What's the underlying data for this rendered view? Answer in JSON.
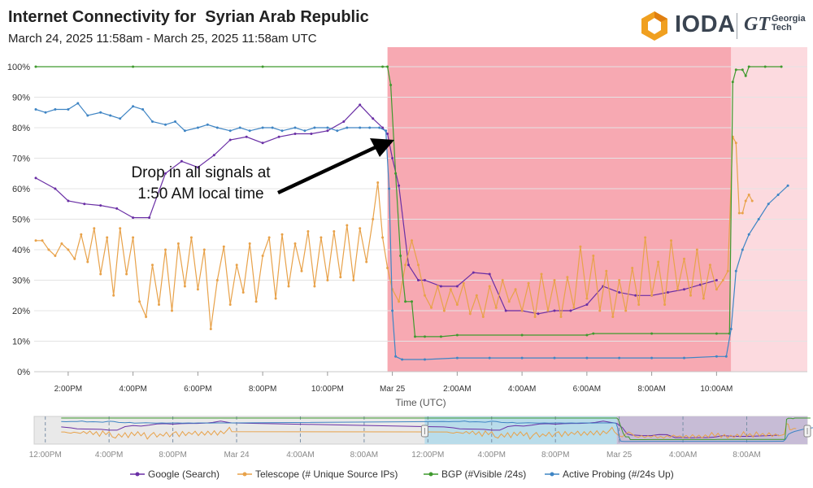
{
  "header": {
    "title": "Internet Connectivity for  Syrian Arab Republic",
    "subtitle": "March 24, 2025 11:58am - March 25, 2025 11:58am UTC",
    "logo_main": "IODA",
    "logo_gt": "GT",
    "logo_gt_line1": "Georgia",
    "logo_gt_line2": "Tech"
  },
  "annotation": {
    "line1": "Drop in all signals at",
    "line2": "1:50 AM local time"
  },
  "colors": {
    "google": "#6a2fa5",
    "telescope": "#e8a24a",
    "bgp": "#3f9a2e",
    "probing": "#3f85c4",
    "outage_dark": "#f7a9b2",
    "outage_light": "#fcdadf",
    "grid": "#e4e4e4"
  },
  "chart_data": {
    "type": "line",
    "title": "Internet Connectivity for  Syrian Arab Republic",
    "xlabel": "Time (UTC)",
    "ylabel": "",
    "ylim": [
      0,
      100
    ],
    "xlim_hours": [
      12.95,
      36.8
    ],
    "y_ticks": [
      "0%",
      "10%",
      "20%",
      "30%",
      "40%",
      "50%",
      "60%",
      "70%",
      "80%",
      "90%",
      "100%"
    ],
    "x_ticks": [
      {
        "h": 14,
        "label": "2:00PM"
      },
      {
        "h": 16,
        "label": "4:00PM"
      },
      {
        "h": 18,
        "label": "6:00PM"
      },
      {
        "h": 20,
        "label": "8:00PM"
      },
      {
        "h": 22,
        "label": "10:00PM"
      },
      {
        "h": 24,
        "label": "Mar 25"
      },
      {
        "h": 26,
        "label": "2:00AM"
      },
      {
        "h": 28,
        "label": "4:00AM"
      },
      {
        "h": 30,
        "label": "6:00AM"
      },
      {
        "h": 32,
        "label": "8:00AM"
      },
      {
        "h": 34,
        "label": "10:00AM"
      }
    ],
    "outages": [
      {
        "start_h": 23.85,
        "end_h": 34.45,
        "shade": "dark"
      },
      {
        "start_h": 34.45,
        "end_h": 36.8,
        "shade": "light"
      }
    ],
    "series": [
      {
        "name": "Google (Search)",
        "key": "google",
        "points": [
          [
            13.0,
            63.5
          ],
          [
            13.6,
            60
          ],
          [
            14.0,
            56
          ],
          [
            14.5,
            55
          ],
          [
            15.0,
            54.5
          ],
          [
            15.5,
            53.5
          ],
          [
            16.0,
            50.5
          ],
          [
            16.5,
            50.5
          ],
          [
            17.0,
            65
          ],
          [
            17.5,
            69
          ],
          [
            18.0,
            67
          ],
          [
            18.5,
            71
          ],
          [
            19.0,
            76
          ],
          [
            19.5,
            77
          ],
          [
            20.0,
            75
          ],
          [
            20.5,
            77
          ],
          [
            21.0,
            78
          ],
          [
            21.5,
            78
          ],
          [
            22.0,
            79
          ],
          [
            22.5,
            82
          ],
          [
            23.0,
            87.5
          ],
          [
            23.4,
            83
          ],
          [
            23.7,
            80
          ],
          [
            23.85,
            78
          ],
          [
            24.0,
            70
          ],
          [
            24.2,
            61
          ],
          [
            24.5,
            35
          ],
          [
            24.8,
            30
          ],
          [
            25.0,
            30
          ],
          [
            25.5,
            28
          ],
          [
            26.0,
            28
          ],
          [
            26.5,
            32.5
          ],
          [
            27.0,
            32
          ],
          [
            27.5,
            20
          ],
          [
            28.0,
            20
          ],
          [
            28.5,
            19
          ],
          [
            29.0,
            20
          ],
          [
            29.5,
            20
          ],
          [
            30.0,
            22
          ],
          [
            30.5,
            28
          ],
          [
            31.0,
            26
          ],
          [
            31.5,
            25
          ],
          [
            32.0,
            25
          ],
          [
            32.5,
            26
          ],
          [
            33.0,
            27
          ],
          [
            33.5,
            28.5
          ],
          [
            34.0,
            30
          ]
        ]
      },
      {
        "name": "Telescope (# Unique Source IPs)",
        "key": "telescope",
        "points": [
          [
            13.0,
            43
          ],
          [
            13.2,
            43
          ],
          [
            13.4,
            40
          ],
          [
            13.6,
            38
          ],
          [
            13.8,
            42
          ],
          [
            14.0,
            40
          ],
          [
            14.2,
            37
          ],
          [
            14.4,
            45
          ],
          [
            14.6,
            36
          ],
          [
            14.8,
            47
          ],
          [
            15.0,
            32
          ],
          [
            15.2,
            44
          ],
          [
            15.4,
            25
          ],
          [
            15.6,
            47
          ],
          [
            15.8,
            32
          ],
          [
            16.0,
            44
          ],
          [
            16.2,
            23
          ],
          [
            16.4,
            18
          ],
          [
            16.6,
            35
          ],
          [
            16.8,
            22
          ],
          [
            17.0,
            40
          ],
          [
            17.2,
            20
          ],
          [
            17.4,
            42
          ],
          [
            17.6,
            28
          ],
          [
            17.8,
            44
          ],
          [
            18.0,
            27
          ],
          [
            18.2,
            40
          ],
          [
            18.4,
            14
          ],
          [
            18.6,
            30
          ],
          [
            18.8,
            41
          ],
          [
            19.0,
            22
          ],
          [
            19.2,
            35
          ],
          [
            19.4,
            26
          ],
          [
            19.6,
            42
          ],
          [
            19.8,
            23
          ],
          [
            20.0,
            38
          ],
          [
            20.2,
            44
          ],
          [
            20.4,
            24
          ],
          [
            20.6,
            45
          ],
          [
            20.8,
            28
          ],
          [
            21.0,
            42
          ],
          [
            21.2,
            33
          ],
          [
            21.4,
            46
          ],
          [
            21.6,
            28
          ],
          [
            21.8,
            44
          ],
          [
            22.0,
            30
          ],
          [
            22.2,
            46
          ],
          [
            22.4,
            31
          ],
          [
            22.6,
            48
          ],
          [
            22.8,
            30
          ],
          [
            23.0,
            47
          ],
          [
            23.2,
            36
          ],
          [
            23.4,
            50
          ],
          [
            23.55,
            62
          ],
          [
            23.7,
            44
          ],
          [
            23.85,
            34
          ],
          [
            24.0,
            27
          ],
          [
            24.2,
            23
          ],
          [
            24.4,
            35
          ],
          [
            24.6,
            43
          ],
          [
            24.8,
            35
          ],
          [
            25.0,
            25
          ],
          [
            25.2,
            21
          ],
          [
            25.4,
            28
          ],
          [
            25.6,
            20
          ],
          [
            25.8,
            27
          ],
          [
            26.0,
            22
          ],
          [
            26.2,
            29
          ],
          [
            26.4,
            19
          ],
          [
            26.6,
            25
          ],
          [
            26.8,
            18
          ],
          [
            27.0,
            28
          ],
          [
            27.2,
            21
          ],
          [
            27.4,
            30
          ],
          [
            27.6,
            23
          ],
          [
            27.8,
            27
          ],
          [
            28.0,
            20
          ],
          [
            28.2,
            29
          ],
          [
            28.4,
            18
          ],
          [
            28.6,
            32
          ],
          [
            28.8,
            20
          ],
          [
            29.0,
            30
          ],
          [
            29.2,
            18
          ],
          [
            29.4,
            31
          ],
          [
            29.6,
            21
          ],
          [
            29.8,
            41
          ],
          [
            30.0,
            24
          ],
          [
            30.2,
            38
          ],
          [
            30.4,
            20
          ],
          [
            30.6,
            33
          ],
          [
            30.8,
            18
          ],
          [
            31.0,
            30
          ],
          [
            31.2,
            20
          ],
          [
            31.4,
            34
          ],
          [
            31.6,
            22
          ],
          [
            31.8,
            44
          ],
          [
            32.0,
            25
          ],
          [
            32.2,
            36
          ],
          [
            32.4,
            22
          ],
          [
            32.6,
            43
          ],
          [
            32.8,
            27
          ],
          [
            33.0,
            37
          ],
          [
            33.2,
            25
          ],
          [
            33.4,
            40
          ],
          [
            33.6,
            24
          ],
          [
            33.8,
            35
          ],
          [
            34.0,
            27
          ],
          [
            34.2,
            30
          ],
          [
            34.35,
            33
          ],
          [
            34.5,
            77
          ],
          [
            34.6,
            75
          ],
          [
            34.7,
            52
          ],
          [
            34.8,
            52
          ],
          [
            34.9,
            56
          ],
          [
            35.0,
            58
          ],
          [
            35.1,
            56
          ]
        ]
      },
      {
        "name": "BGP (#Visible /24s)",
        "key": "bgp",
        "points": [
          [
            13.0,
            100
          ],
          [
            16.0,
            100
          ],
          [
            20.0,
            100
          ],
          [
            23.7,
            100
          ],
          [
            23.85,
            100
          ],
          [
            23.95,
            94
          ],
          [
            24.1,
            65
          ],
          [
            24.25,
            38
          ],
          [
            24.4,
            23
          ],
          [
            24.6,
            23
          ],
          [
            24.7,
            11.5
          ],
          [
            25.0,
            11.5
          ],
          [
            25.5,
            11.5
          ],
          [
            26.0,
            12
          ],
          [
            28.0,
            12
          ],
          [
            30.0,
            12
          ],
          [
            30.2,
            12.5
          ],
          [
            32.0,
            12.5
          ],
          [
            34.0,
            12.5
          ],
          [
            34.4,
            12.5
          ],
          [
            34.5,
            95
          ],
          [
            34.6,
            99
          ],
          [
            34.8,
            99
          ],
          [
            34.9,
            97
          ],
          [
            35.0,
            100
          ],
          [
            35.5,
            100
          ],
          [
            36.0,
            100
          ]
        ]
      },
      {
        "name": "Active Probing (#/24s Up)",
        "key": "probing",
        "points": [
          [
            13.0,
            86
          ],
          [
            13.3,
            85
          ],
          [
            13.6,
            86
          ],
          [
            14.0,
            86
          ],
          [
            14.3,
            88
          ],
          [
            14.6,
            84
          ],
          [
            15.0,
            85
          ],
          [
            15.3,
            84
          ],
          [
            15.6,
            83
          ],
          [
            16.0,
            87
          ],
          [
            16.3,
            86
          ],
          [
            16.6,
            82
          ],
          [
            17.0,
            81
          ],
          [
            17.3,
            82
          ],
          [
            17.6,
            79
          ],
          [
            18.0,
            80
          ],
          [
            18.3,
            81
          ],
          [
            18.6,
            80
          ],
          [
            19.0,
            79
          ],
          [
            19.3,
            80
          ],
          [
            19.6,
            79
          ],
          [
            20.0,
            80
          ],
          [
            20.3,
            80
          ],
          [
            20.6,
            79
          ],
          [
            21.0,
            80
          ],
          [
            21.3,
            79
          ],
          [
            21.6,
            80
          ],
          [
            22.0,
            80
          ],
          [
            22.3,
            79
          ],
          [
            22.6,
            80
          ],
          [
            23.0,
            80
          ],
          [
            23.3,
            80
          ],
          [
            23.6,
            80
          ],
          [
            23.8,
            79
          ],
          [
            23.9,
            60
          ],
          [
            24.0,
            20
          ],
          [
            24.1,
            5
          ],
          [
            24.3,
            4
          ],
          [
            25.0,
            4
          ],
          [
            26.0,
            4.5
          ],
          [
            27.0,
            4.5
          ],
          [
            28.0,
            4.5
          ],
          [
            29.0,
            4.5
          ],
          [
            30.0,
            4.5
          ],
          [
            31.0,
            4.5
          ],
          [
            32.0,
            4.5
          ],
          [
            33.0,
            4.5
          ],
          [
            34.0,
            5
          ],
          [
            34.3,
            5
          ],
          [
            34.45,
            14
          ],
          [
            34.6,
            33
          ],
          [
            34.8,
            40
          ],
          [
            35.0,
            45
          ],
          [
            35.3,
            50
          ],
          [
            35.6,
            55
          ],
          [
            35.9,
            58
          ],
          [
            36.2,
            61
          ]
        ]
      }
    ],
    "navigator": {
      "xlim_hours": [
        11.5,
        36.8
      ],
      "x_ticks": [
        {
          "h": 12,
          "label": "12:00PM"
        },
        {
          "h": 16,
          "label": "4:00PM"
        },
        {
          "h": 20,
          "label": "8:00PM"
        },
        {
          "h": 24,
          "label": "Mar 24"
        },
        {
          "h": 28,
          "label": "4:00AM"
        },
        {
          "h": 32,
          "label": "8:00AM"
        },
        {
          "h": 36,
          "label": "12:00PM"
        },
        {
          "h": 40,
          "label": "4:00PM"
        },
        {
          "h": 44,
          "label": "8:00PM"
        },
        {
          "h": 48,
          "label": "Mar 25"
        },
        {
          "h": 52,
          "label": "4:00AM"
        },
        {
          "h": 56,
          "label": "8:00AM"
        }
      ],
      "full_range_hours": [
        11.3,
        59.8
      ]
    }
  },
  "legend": [
    {
      "key": "google",
      "label": "Google (Search)"
    },
    {
      "key": "telescope",
      "label": "Telescope (# Unique Source IPs)"
    },
    {
      "key": "bgp",
      "label": "BGP (#Visible /24s)"
    },
    {
      "key": "probing",
      "label": "Active Probing (#/24s Up)"
    }
  ]
}
